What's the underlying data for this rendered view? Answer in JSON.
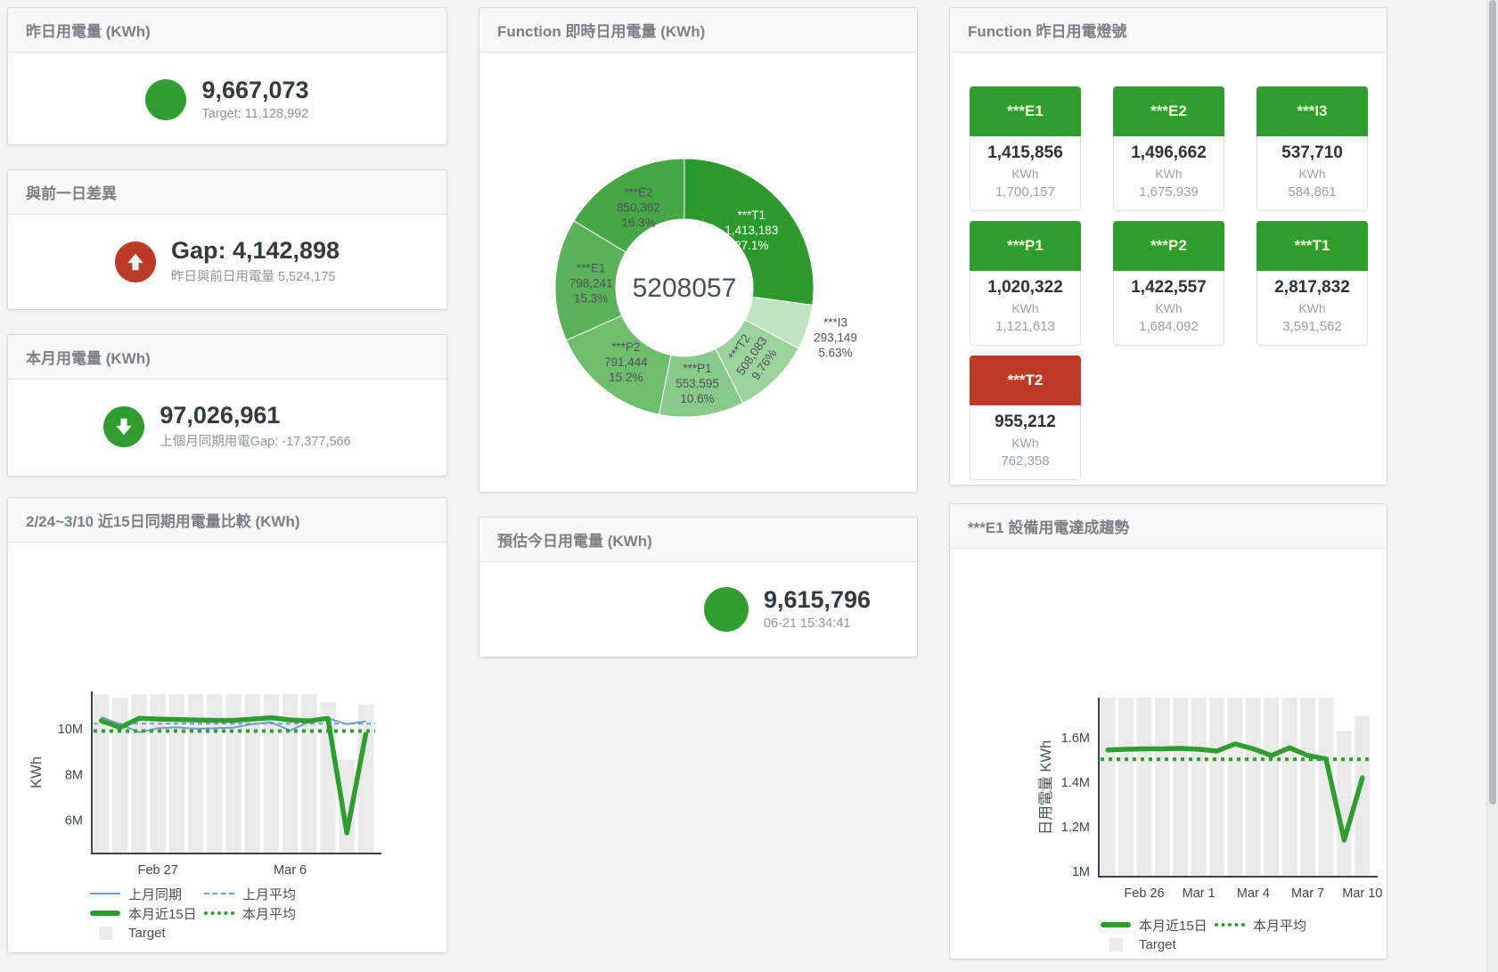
{
  "accent": {
    "green": "#2f9e2f",
    "red": "#bf3a26",
    "blue_line": "#6e9fca",
    "bar_gray": "#eaeaea"
  },
  "stat_cards": {
    "yesterday": {
      "title": "昨日用電量 (KWh)",
      "value": "9,667,073",
      "sub": "Target: 11,128,992"
    },
    "gap": {
      "title": "與前一日差異",
      "value": "Gap: 4,142,898",
      "sub": "昨日與前日用電量 5,524,175"
    },
    "month": {
      "title": "本月用電量 (KWh)",
      "value": "97,026,961",
      "sub": "上個月同期用電Gap: -17,377,566"
    },
    "estimate": {
      "title": "預估今日用電量 (KWh)",
      "value": "9,615,796",
      "sub": "06-21 15:34:41"
    }
  },
  "status_panel": {
    "title": "Function 昨日用電燈號",
    "unit": "KWh",
    "tiles": [
      {
        "label": "***E1",
        "value": "1,415,856",
        "target": "1,700,157",
        "status": "green"
      },
      {
        "label": "***E2",
        "value": "1,496,662",
        "target": "1,675,939",
        "status": "green"
      },
      {
        "label": "***I3",
        "value": "537,710",
        "target": "584,861",
        "status": "green"
      },
      {
        "label": "***P1",
        "value": "1,020,322",
        "target": "1,121,613",
        "status": "green"
      },
      {
        "label": "***P2",
        "value": "1,422,557",
        "target": "1,684,092",
        "status": "green"
      },
      {
        "label": "***T1",
        "value": "2,817,832",
        "target": "3,591,562",
        "status": "green"
      },
      {
        "label": "***T2",
        "value": "955,212",
        "target": "762,358",
        "status": "red"
      }
    ]
  },
  "chart_data": [
    {
      "id": "realtime_donut",
      "type": "pie",
      "title": "Function 即時日用電量 (KWh)",
      "center_total": "5208057",
      "slices": [
        {
          "name": "***T1",
          "value": 1413183,
          "value_str": "1,413,183",
          "pct": "27.1%",
          "color": "#2d9a2d",
          "label_color": "#ffffff",
          "label_r": 100
        },
        {
          "name": "***I3",
          "value": 293149,
          "value_str": "293,149",
          "pct": "5.63%",
          "color": "#c0e3c0",
          "outside": true
        },
        {
          "name": "***T2",
          "value": 508083,
          "value_str": "508,083",
          "pct": "9.76%",
          "color": "#9cd29c",
          "rotate": -55,
          "label_r": 106
        },
        {
          "name": "***P1",
          "value": 553595,
          "value_str": "553,595",
          "pct": "10.6%",
          "color": "#89c989",
          "label_r": 107
        },
        {
          "name": "***P2",
          "value": 791444,
          "value_str": "791,444",
          "pct": "15.2%",
          "color": "#6ebe6e",
          "label_r": 105
        },
        {
          "name": "***E1",
          "value": 798241,
          "value_str": "798,241",
          "pct": "15.3%",
          "color": "#59b159, ",
          "label_r": 105
        },
        {
          "name": "***E2",
          "value": 850362,
          "value_str": "850,362",
          "pct": "16.3%",
          "color": "#46a746",
          "label_r": 105
        }
      ]
    },
    {
      "id": "compare15",
      "type": "line+bar",
      "title": "2/24~3/10 近15日同期用電量比較 (KWh)",
      "ylabel": "KWh",
      "ylim": [
        4550000,
        11630000
      ],
      "yticks": [
        {
          "v": 6000000,
          "label": "6M"
        },
        {
          "v": 8000000,
          "label": "8M"
        },
        {
          "v": 10000000,
          "label": "10M"
        }
      ],
      "xticks": [
        {
          "i": 3,
          "label": "Feb 27"
        },
        {
          "i": 10,
          "label": "Mar 6"
        }
      ],
      "target_label": "Target",
      "target_bars": [
        11500000,
        11350000,
        11500000,
        11500000,
        11500000,
        11500000,
        11500000,
        11500000,
        11500000,
        11500000,
        11500000,
        11500000,
        11150000,
        8650000,
        11050000
      ],
      "series": [
        {
          "name": "上月同期",
          "style": "blue-line",
          "values": [
            10500000,
            10200000,
            9850000,
            10020000,
            10060000,
            10000000,
            10020000,
            10050000,
            10200000,
            10280000,
            9920000,
            10300000,
            10450000,
            10200000,
            10320000
          ]
        },
        {
          "name": "上月平均",
          "style": "blue-dash",
          "const": 10220000
        },
        {
          "name": "本月平均",
          "style": "green-dot",
          "const": 9900000
        },
        {
          "name": "本月近15日",
          "style": "green-thick",
          "values": [
            10350000,
            10050000,
            10450000,
            10420000,
            10400000,
            10380000,
            10360000,
            10360000,
            10420000,
            10480000,
            10380000,
            10340000,
            10450000,
            5450000,
            9750000
          ]
        }
      ]
    },
    {
      "id": "e1_trend",
      "type": "line+bar",
      "title": "***E1 設備用電達成趨勢",
      "ylabel": "日用電量 KWh",
      "ylim": [
        976000,
        1780000
      ],
      "yticks": [
        {
          "v": 1000000,
          "label": "1M"
        },
        {
          "v": 1200000,
          "label": "1.2M"
        },
        {
          "v": 1400000,
          "label": "1.4M"
        },
        {
          "v": 1600000,
          "label": "1.6M"
        }
      ],
      "xticks": [
        {
          "i": 2,
          "label": "Feb 26"
        },
        {
          "i": 5,
          "label": "Mar 1"
        },
        {
          "i": 8,
          "label": "Mar 4"
        },
        {
          "i": 11,
          "label": "Mar 7"
        },
        {
          "i": 14,
          "label": "Mar 10"
        }
      ],
      "target_label": "Target",
      "target_bars": [
        1780000,
        1780000,
        1780000,
        1780000,
        1780000,
        1780000,
        1780000,
        1780000,
        1780000,
        1780000,
        1780000,
        1780000,
        1780000,
        1630000,
        1700000
      ],
      "series": [
        {
          "name": "本月平均",
          "style": "green-dot",
          "const": 1503000
        },
        {
          "name": "本月近15日",
          "style": "green-thick",
          "values": [
            1545000,
            1548000,
            1550000,
            1550000,
            1552000,
            1548000,
            1540000,
            1572000,
            1550000,
            1520000,
            1555000,
            1520000,
            1505000,
            1140000,
            1420000
          ]
        }
      ]
    }
  ]
}
